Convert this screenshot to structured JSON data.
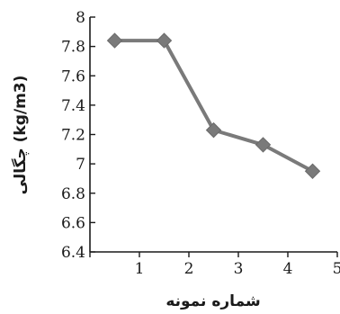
{
  "chart_data": {
    "type": "line",
    "title": "",
    "xlabel": "شماره نمونه",
    "ylabel": "چگالی (kg/m3)",
    "xlim": [
      0,
      5
    ],
    "ylim": [
      6.4,
      8
    ],
    "x_ticks": [
      "1",
      "2",
      "3",
      "4",
      "5"
    ],
    "y_ticks": [
      "6.4",
      "6.6",
      "6.8",
      "7",
      "7.2",
      "7.4",
      "7.6",
      "7.8",
      "8"
    ],
    "x_tick_values": [
      1,
      2,
      3,
      4,
      5
    ],
    "y_tick_values": [
      6.4,
      6.6,
      6.8,
      7.0,
      7.2,
      7.4,
      7.6,
      7.8,
      8.0
    ],
    "grid": false,
    "marker": "diamond",
    "series": [
      {
        "x": [
          0.5,
          1.5,
          2.5,
          3.5,
          4.5
        ],
        "values": [
          7.84,
          7.84,
          7.23,
          7.13,
          6.95
        ],
        "color": "#7a7a7a"
      }
    ]
  }
}
